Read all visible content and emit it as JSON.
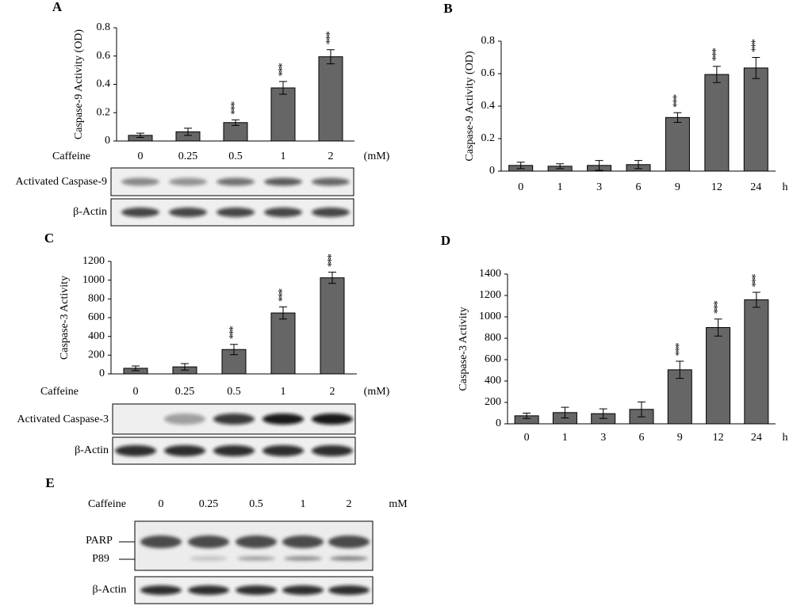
{
  "chart_data": [
    {
      "type": "bar",
      "title": "A",
      "ylabel": "Caspase-9 Activity (OD)",
      "xlabel_left": "Caffeine",
      "xlabel": "(mM)",
      "categories": [
        "0",
        "0.25",
        "0.5",
        "1",
        "2"
      ],
      "series": [
        {
          "color": "#666666",
          "values": [
            0.04,
            0.065,
            0.13,
            0.375,
            0.595
          ],
          "errors": [
            0.015,
            0.025,
            0.02,
            0.045,
            0.05
          ]
        }
      ],
      "annotations": [
        null,
        null,
        "***",
        "***",
        "***"
      ],
      "ylim": [
        0,
        0.8
      ],
      "yticks": [
        0,
        0.2,
        0.4,
        0.6,
        0.8
      ]
    },
    {
      "type": "bar",
      "title": "B",
      "ylabel": "Caspase-9 Activity (OD)",
      "xlabel": "h",
      "categories": [
        "0",
        "1",
        "3",
        "6",
        "9",
        "12",
        "24"
      ],
      "series": [
        {
          "color": "#666666",
          "values": [
            0.035,
            0.03,
            0.035,
            0.04,
            0.33,
            0.595,
            0.635
          ],
          "errors": [
            0.02,
            0.015,
            0.03,
            0.025,
            0.03,
            0.05,
            0.065
          ]
        }
      ],
      "annotations": [
        null,
        null,
        null,
        null,
        "***",
        "***",
        "***"
      ],
      "ylim": [
        0,
        0.8
      ],
      "yticks": [
        0,
        0.2,
        0.4,
        0.6,
        0.8
      ]
    },
    {
      "type": "bar",
      "title": "C",
      "ylabel": "Caspase-3 Activity",
      "xlabel_left": "Caffeine",
      "xlabel": "(mM)",
      "categories": [
        "0",
        "0.25",
        "0.5",
        "1",
        "2"
      ],
      "series": [
        {
          "color": "#666666",
          "values": [
            60,
            75,
            260,
            650,
            1025
          ],
          "errors": [
            25,
            35,
            55,
            65,
            60
          ]
        }
      ],
      "annotations": [
        null,
        null,
        "***",
        "***",
        "***"
      ],
      "ylim": [
        0,
        1200
      ],
      "yticks": [
        0,
        200,
        400,
        600,
        800,
        1000,
        1200
      ]
    },
    {
      "type": "bar",
      "title": "D",
      "ylabel": "Caspase-3 Activity",
      "xlabel": "h",
      "categories": [
        "0",
        "1",
        "3",
        "6",
        "9",
        "12",
        "24"
      ],
      "series": [
        {
          "color": "#666666",
          "values": [
            75,
            105,
            95,
            135,
            505,
            900,
            1160
          ],
          "errors": [
            25,
            50,
            45,
            70,
            80,
            80,
            70
          ]
        }
      ],
      "annotations": [
        null,
        null,
        null,
        null,
        "***",
        "***",
        "***"
      ],
      "ylim": [
        0,
        1400
      ],
      "yticks": [
        0,
        200,
        400,
        600,
        800,
        1000,
        1200,
        1400
      ]
    }
  ],
  "blots": {
    "A": [
      "Activated Caspase-9",
      "β-Actin"
    ],
    "C": [
      "Activated Caspase-3",
      "β-Actin"
    ]
  },
  "panel_e": {
    "title": "E",
    "caffeine_label": "Caffeine",
    "doses": [
      "0",
      "0.25",
      "0.5",
      "1",
      "2"
    ],
    "unit": "mM",
    "labels": [
      "PARP",
      "P89",
      "β-Actin"
    ]
  }
}
